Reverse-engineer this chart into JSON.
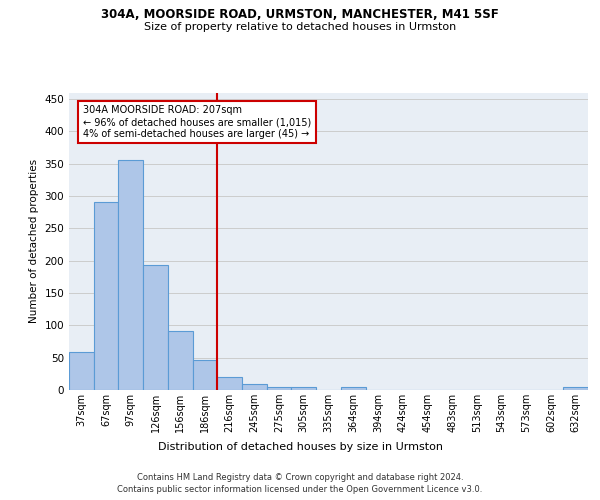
{
  "title_line1": "304A, MOORSIDE ROAD, URMSTON, MANCHESTER, M41 5SF",
  "title_line2": "Size of property relative to detached houses in Urmston",
  "xlabel": "Distribution of detached houses by size in Urmston",
  "ylabel": "Number of detached properties",
  "categories": [
    "37sqm",
    "67sqm",
    "97sqm",
    "126sqm",
    "156sqm",
    "186sqm",
    "216sqm",
    "245sqm",
    "275sqm",
    "305sqm",
    "335sqm",
    "364sqm",
    "394sqm",
    "424sqm",
    "454sqm",
    "483sqm",
    "513sqm",
    "543sqm",
    "573sqm",
    "602sqm",
    "632sqm"
  ],
  "values": [
    59,
    290,
    355,
    193,
    91,
    46,
    20,
    9,
    5,
    5,
    0,
    5,
    0,
    0,
    0,
    0,
    0,
    0,
    0,
    0,
    5
  ],
  "bar_color": "#aec6e8",
  "bar_edge_color": "#5b9bd5",
  "vline_x": 5.5,
  "annotation_text": "304A MOORSIDE ROAD: 207sqm\n← 96% of detached houses are smaller (1,015)\n4% of semi-detached houses are larger (45) →",
  "annotation_box_color": "#ffffff",
  "annotation_box_edge_color": "#cc0000",
  "vline_color": "#cc0000",
  "ylim": [
    0,
    460
  ],
  "yticks": [
    0,
    50,
    100,
    150,
    200,
    250,
    300,
    350,
    400,
    450
  ],
  "grid_color": "#cccccc",
  "bg_color": "#e8eef5",
  "footer_line1": "Contains HM Land Registry data © Crown copyright and database right 2024.",
  "footer_line2": "Contains public sector information licensed under the Open Government Licence v3.0."
}
